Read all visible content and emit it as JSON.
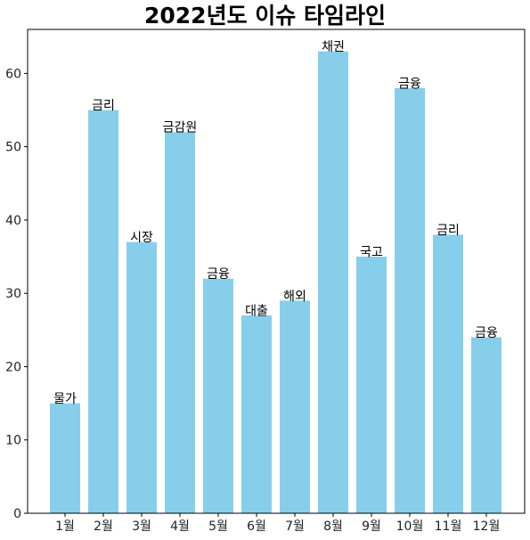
{
  "chart_data": {
    "type": "bar",
    "title": "2022년도 이슈 타임라인",
    "xlabel": "",
    "ylabel": "",
    "categories": [
      "1월",
      "2월",
      "3월",
      "4월",
      "5월",
      "6월",
      "7월",
      "8월",
      "9월",
      "10월",
      "11월",
      "12월"
    ],
    "values": [
      15,
      55,
      37,
      52,
      32,
      27,
      29,
      63,
      35,
      58,
      38,
      24
    ],
    "bar_labels": [
      "물가",
      "금리",
      "시장",
      "금감원",
      "금융",
      "대출",
      "해외",
      "채권",
      "국고",
      "금융",
      "금리",
      "금융"
    ],
    "ylim": [
      0,
      66
    ],
    "yticks": [
      0,
      10,
      20,
      30,
      40,
      50,
      60
    ],
    "bar_color": "#87CEEB",
    "grid": false,
    "legend": "none"
  }
}
